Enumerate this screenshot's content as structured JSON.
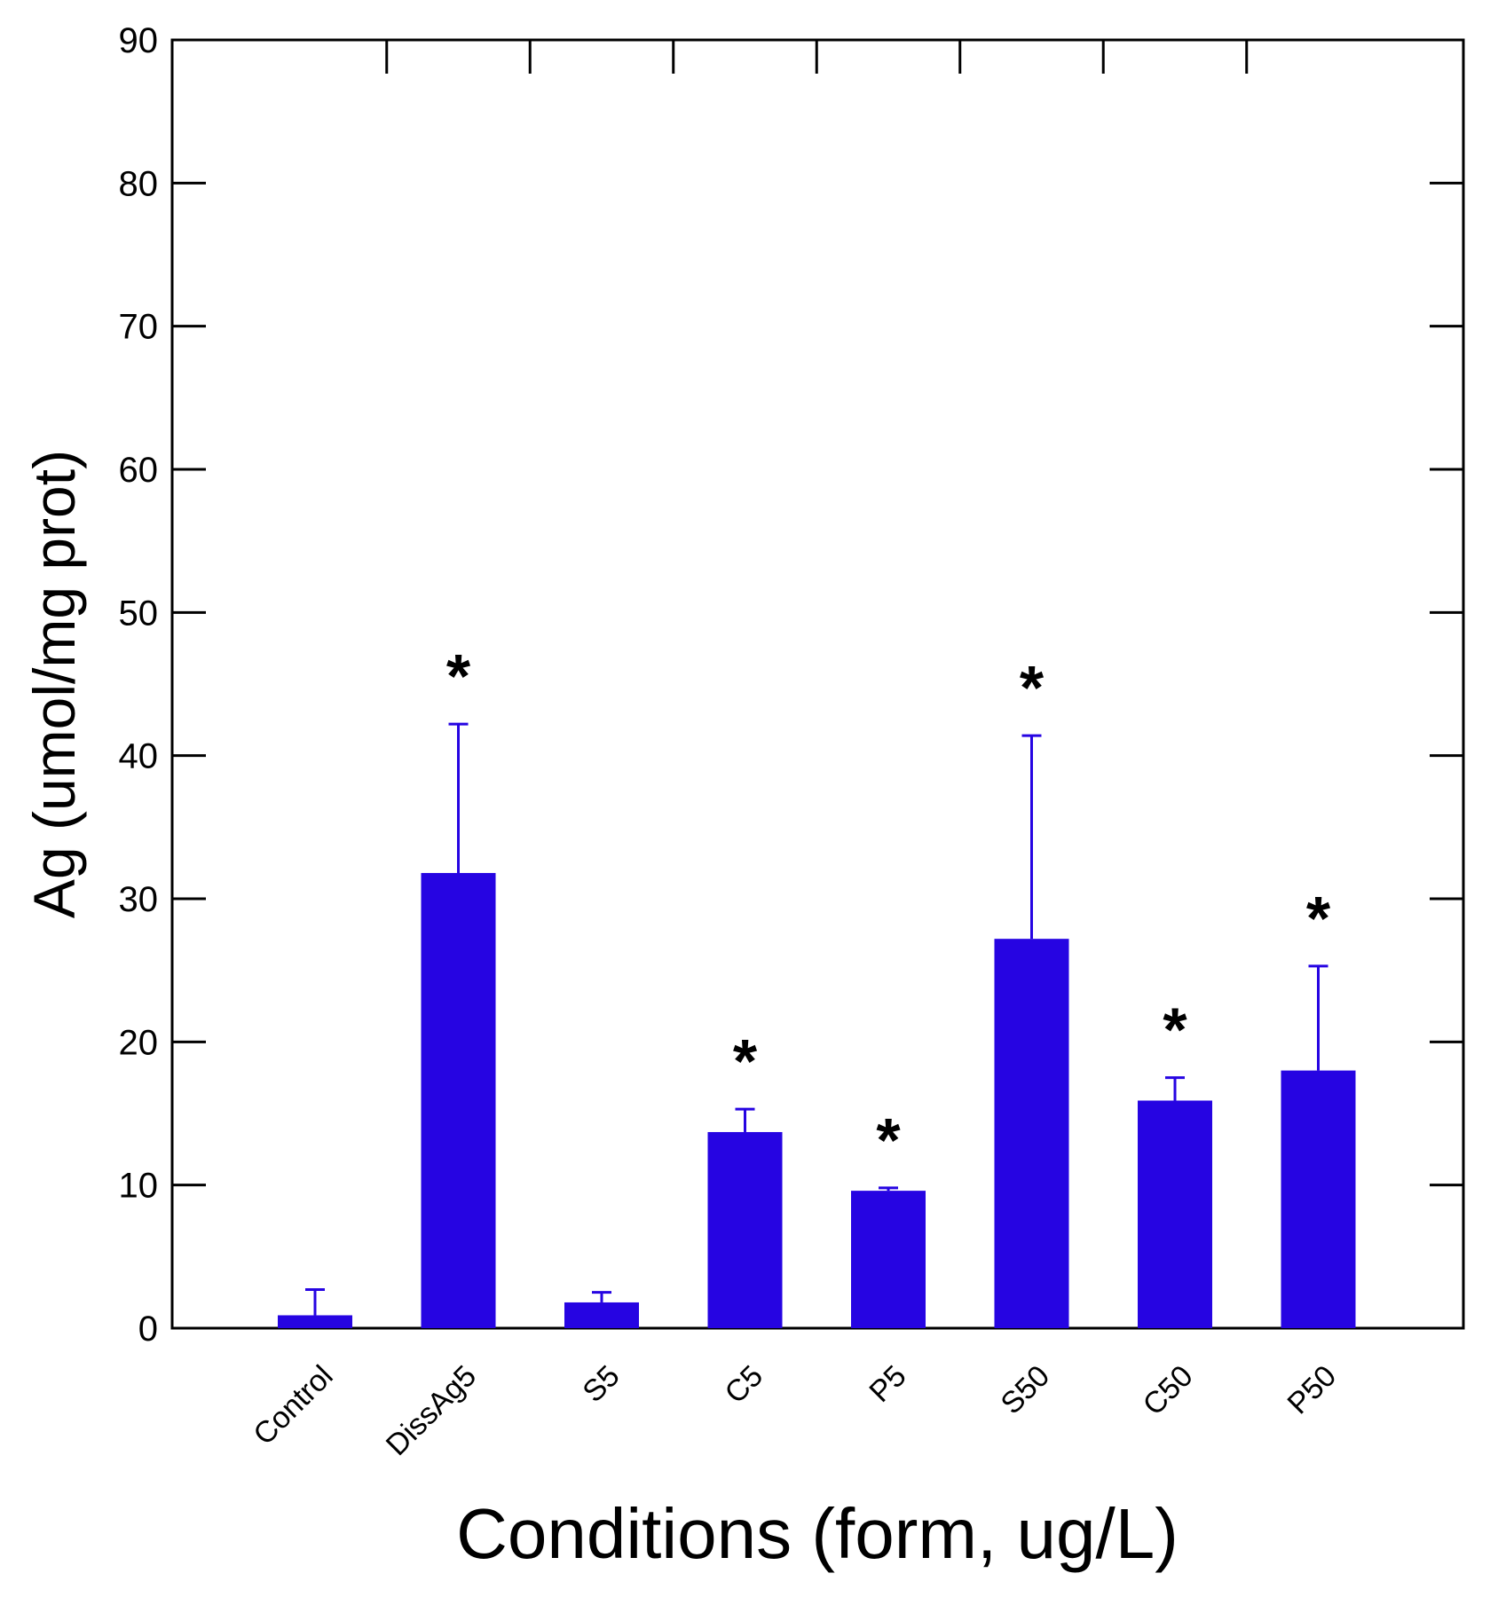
{
  "chart_data": {
    "type": "bar",
    "title": "",
    "xlabel": "Conditions (form, ug/L)",
    "ylabel": "Ag (umol/mg prot)",
    "ylim": [
      0,
      90
    ],
    "yticks": [
      0,
      10,
      20,
      30,
      40,
      50,
      60,
      70,
      80,
      90
    ],
    "ytick_labels": [
      "0",
      "10",
      "20",
      "30",
      "40",
      "50",
      "60",
      "70",
      "80",
      "90"
    ],
    "categories": [
      "Control",
      "DissAg5",
      "S5",
      "C5",
      "P5",
      "S50",
      "C50",
      "P50"
    ],
    "values": [
      0.9,
      31.8,
      1.8,
      13.7,
      9.6,
      27.2,
      15.9,
      18.0
    ],
    "errors": [
      1.8,
      10.4,
      0.7,
      1.6,
      0.2,
      14.2,
      1.6,
      7.3
    ],
    "significance_marker": "*",
    "significant": [
      false,
      true,
      false,
      true,
      true,
      true,
      true,
      true
    ],
    "grid": false,
    "bar_color": "#2604e2",
    "axis_color": "#000000"
  }
}
